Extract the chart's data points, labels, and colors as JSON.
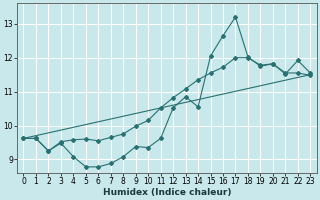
{
  "xlabel": "Humidex (Indice chaleur)",
  "bg_color": "#c8e8ec",
  "grid_color": "#ffffff",
  "line_color": "#2a7070",
  "xlim": [
    -0.5,
    23.5
  ],
  "ylim": [
    8.6,
    13.6
  ],
  "xticks": [
    0,
    1,
    2,
    3,
    4,
    5,
    6,
    7,
    8,
    9,
    10,
    11,
    12,
    13,
    14,
    15,
    16,
    17,
    18,
    19,
    20,
    21,
    22,
    23
  ],
  "yticks": [
    9,
    10,
    11,
    12,
    13
  ],
  "line1_x": [
    0,
    1,
    2,
    3,
    4,
    5,
    6,
    7,
    8,
    9,
    10,
    11,
    12,
    13,
    14,
    15,
    16,
    17,
    18,
    19,
    20,
    21,
    22,
    23
  ],
  "line1_y": [
    9.62,
    9.62,
    9.25,
    9.48,
    9.08,
    8.78,
    8.78,
    8.88,
    9.08,
    9.38,
    9.35,
    9.62,
    10.52,
    10.85,
    10.55,
    12.05,
    12.65,
    13.2,
    12.02,
    11.75,
    11.82,
    11.52,
    11.92,
    11.55
  ],
  "line2_x": [
    0,
    1,
    2,
    3,
    4,
    5,
    6,
    7,
    8,
    9,
    10,
    11,
    12,
    13,
    14,
    15,
    16,
    17,
    18,
    19,
    20,
    21,
    22,
    23
  ],
  "line2_y": [
    9.62,
    9.62,
    9.25,
    9.52,
    9.58,
    9.6,
    9.55,
    9.65,
    9.75,
    9.98,
    10.15,
    10.52,
    10.82,
    11.08,
    11.35,
    11.55,
    11.72,
    12.0,
    12.0,
    11.78,
    11.82,
    11.55,
    11.55,
    11.48
  ],
  "line3_x": [
    0,
    23
  ],
  "line3_y": [
    9.62,
    11.5
  ]
}
